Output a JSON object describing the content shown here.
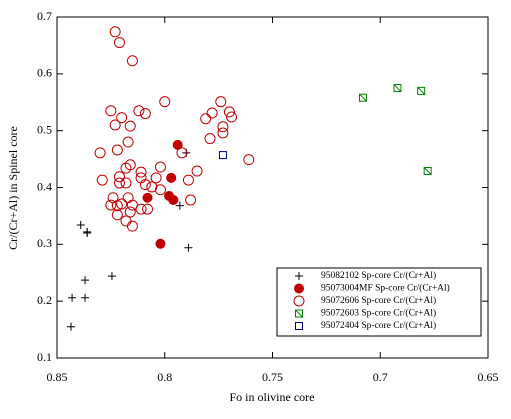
{
  "chart_data": {
    "type": "scatter",
    "xlabel": "Fo in olivine core",
    "ylabel": "Cr/(Cr+Al) in Spinel core",
    "xlim": [
      0.85,
      0.65
    ],
    "xticks": [
      0.85,
      0.8,
      0.75,
      0.7,
      0.65
    ],
    "ylim": [
      0.1,
      0.7
    ],
    "yticks": [
      0.1,
      0.2,
      0.3,
      0.4,
      0.5,
      0.6,
      0.7
    ],
    "legend": "lower right",
    "series": [
      {
        "name": "95082102 Sp-core Cr/(Cr+Al)",
        "color": "#000000",
        "marker": "plus",
        "x": [
          0.8435,
          0.843,
          0.837,
          0.837,
          0.839,
          0.836,
          0.836,
          0.8245,
          0.789,
          0.793,
          0.79
        ],
        "values": [
          0.155,
          0.206,
          0.206,
          0.237,
          0.334,
          0.32,
          0.322,
          0.244,
          0.294,
          0.368,
          0.461
        ]
      },
      {
        "name": "95073004MF Sp-core Cr/(Cr+Al)",
        "color": "#c00000",
        "marker": "filled-circle",
        "x": [
          0.794,
          0.797,
          0.798,
          0.796,
          0.808,
          0.802
        ],
        "values": [
          0.475,
          0.417,
          0.385,
          0.378,
          0.382,
          0.301
        ]
      },
      {
        "name": "95072606 Sp-core Cr/(Cr+Al)",
        "color": "#c00000",
        "marker": "circle",
        "x": [
          0.823,
          0.821,
          0.815,
          0.83,
          0.829,
          0.825,
          0.812,
          0.82,
          0.809,
          0.8,
          0.774,
          0.77,
          0.769,
          0.778,
          0.781,
          0.773,
          0.773,
          0.821,
          0.822,
          0.817,
          0.816,
          0.823,
          0.811,
          0.811,
          0.802,
          0.804,
          0.802,
          0.806,
          0.809,
          0.818,
          0.816,
          0.818,
          0.821,
          0.815,
          0.811,
          0.808,
          0.82,
          0.817,
          0.822,
          0.825,
          0.824,
          0.815,
          0.818,
          0.822,
          0.816,
          0.789,
          0.792,
          0.788,
          0.785,
          0.779,
          0.761
        ],
        "values": [
          0.674,
          0.655,
          0.623,
          0.461,
          0.413,
          0.535,
          0.535,
          0.523,
          0.53,
          0.551,
          0.551,
          0.533,
          0.524,
          0.531,
          0.521,
          0.507,
          0.496,
          0.419,
          0.466,
          0.48,
          0.508,
          0.51,
          0.417,
          0.427,
          0.436,
          0.417,
          0.396,
          0.401,
          0.405,
          0.408,
          0.44,
          0.434,
          0.408,
          0.369,
          0.362,
          0.362,
          0.371,
          0.382,
          0.368,
          0.369,
          0.382,
          0.332,
          0.341,
          0.352,
          0.357,
          0.413,
          0.461,
          0.378,
          0.429,
          0.486,
          0.449
        ]
      },
      {
        "name": "95072603 Sp-core Cr/(Cr+Al)",
        "color": "#008000",
        "marker": "crossed-square",
        "x": [
          0.708,
          0.692,
          0.681,
          0.678
        ],
        "values": [
          0.558,
          0.575,
          0.57,
          0.429
        ]
      },
      {
        "name": "95072404 Sp-core Cr/(Cr+Al)",
        "color": "#000080",
        "marker": "square",
        "x": [
          0.773
        ],
        "values": [
          0.457
        ]
      }
    ]
  }
}
